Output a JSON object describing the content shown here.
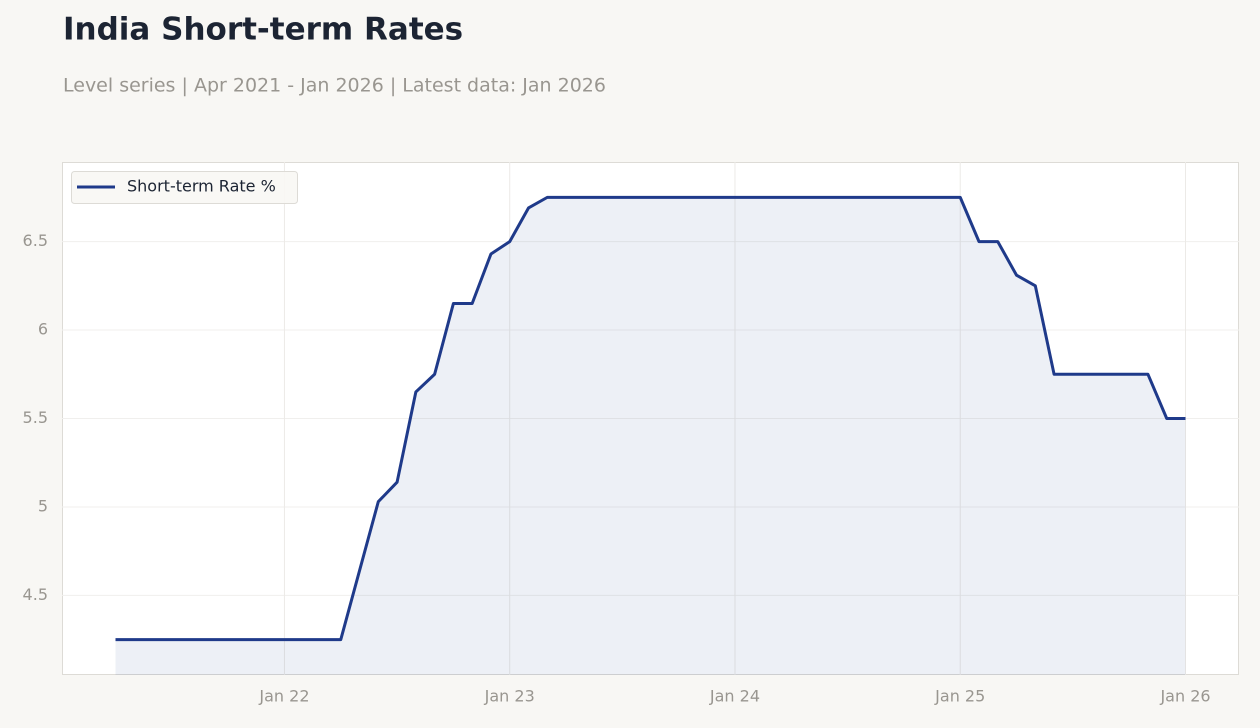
{
  "chart_data": {
    "type": "line",
    "title": "India Short-term Rates",
    "subtitle": "Level series | Apr 2021 - Jan 2026 | Latest data: Jan 2026",
    "x": [
      "2021-04",
      "2021-05",
      "2021-06",
      "2021-07",
      "2021-08",
      "2021-09",
      "2021-10",
      "2021-11",
      "2021-12",
      "2022-01",
      "2022-02",
      "2022-03",
      "2022-04",
      "2022-05",
      "2022-06",
      "2022-07",
      "2022-08",
      "2022-09",
      "2022-10",
      "2022-11",
      "2022-12",
      "2023-01",
      "2023-02",
      "2023-03",
      "2023-04",
      "2023-05",
      "2023-06",
      "2023-07",
      "2023-08",
      "2023-09",
      "2023-10",
      "2023-11",
      "2023-12",
      "2024-01",
      "2024-02",
      "2024-03",
      "2024-04",
      "2024-05",
      "2024-06",
      "2024-07",
      "2024-08",
      "2024-09",
      "2024-10",
      "2024-11",
      "2024-12",
      "2025-01",
      "2025-02",
      "2025-03",
      "2025-04",
      "2025-05",
      "2025-06",
      "2025-07",
      "2025-08",
      "2025-09",
      "2025-10",
      "2025-11",
      "2025-12",
      "2026-01"
    ],
    "series": [
      {
        "name": "Short-term Rate %",
        "color": "#1f3a8a",
        "values": [
          4.25,
          4.25,
          4.25,
          4.25,
          4.25,
          4.25,
          4.25,
          4.25,
          4.25,
          4.25,
          4.25,
          4.25,
          4.25,
          4.64,
          5.03,
          5.14,
          5.65,
          5.75,
          6.15,
          6.15,
          6.43,
          6.5,
          6.69,
          6.75,
          6.75,
          6.75,
          6.75,
          6.75,
          6.75,
          6.75,
          6.75,
          6.75,
          6.75,
          6.75,
          6.75,
          6.75,
          6.75,
          6.75,
          6.75,
          6.75,
          6.75,
          6.75,
          6.75,
          6.75,
          6.75,
          6.75,
          6.5,
          6.5,
          6.31,
          6.25,
          5.75,
          5.75,
          5.75,
          5.75,
          5.75,
          5.75,
          5.5,
          5.5
        ]
      }
    ],
    "xticks": [
      {
        "value": "2022-01",
        "label": "Jan 22"
      },
      {
        "value": "2023-01",
        "label": "Jan 23"
      },
      {
        "value": "2024-01",
        "label": "Jan 24"
      },
      {
        "value": "2025-01",
        "label": "Jan 25"
      },
      {
        "value": "2026-01",
        "label": "Jan 26"
      }
    ],
    "ylim": [
      4.05,
      6.95
    ],
    "yticks": [
      4.5,
      5,
      5.5,
      6,
      6.5
    ],
    "grid": true,
    "area_fill": true,
    "legend": "upper left"
  }
}
